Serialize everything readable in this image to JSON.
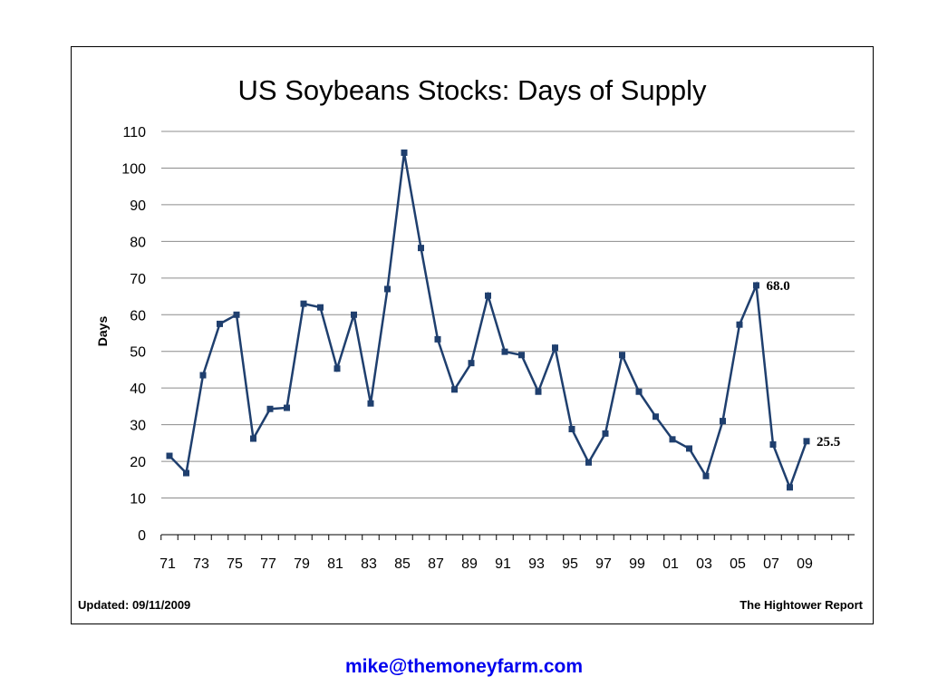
{
  "page": {
    "footer_left": "Updated: 09/11/2009",
    "footer_right": "The Hightower Report",
    "email": "mike@themoneyfarm.com",
    "link_color": "#0000ee"
  },
  "chart_data": {
    "type": "line",
    "title": "US Soybeans Stocks: Days of Supply",
    "xlabel": "",
    "ylabel": "Days",
    "ylim": [
      0,
      110
    ],
    "yticks": [
      0,
      10,
      20,
      30,
      40,
      50,
      60,
      70,
      80,
      90,
      100,
      110
    ],
    "grid": true,
    "line_color": "#1f3f6e",
    "x_tick_labels": [
      "71",
      "73",
      "75",
      "77",
      "79",
      "81",
      "83",
      "85",
      "87",
      "89",
      "91",
      "93",
      "95",
      "97",
      "99",
      "01",
      "03",
      "05",
      "07",
      "09"
    ],
    "series": [
      {
        "x": [
          1971,
          1972,
          1973,
          1974,
          1975,
          1976,
          1977,
          1978,
          1979,
          1980,
          1981,
          1982,
          1983,
          1984,
          1985,
          1986,
          1987,
          1988,
          1989,
          1990,
          1991,
          1992,
          1993,
          1994,
          1995,
          1996,
          1997,
          1998,
          1999,
          2000,
          2001,
          2002,
          2003,
          2004,
          2005,
          2006,
          2007,
          2008,
          2009
        ],
        "values": [
          21.5,
          16.8,
          43.5,
          57.5,
          60.0,
          26.2,
          34.3,
          34.6,
          63.0,
          62.0,
          45.3,
          60.0,
          35.8,
          67.0,
          104.2,
          78.2,
          53.3,
          39.6,
          46.8,
          65.2,
          49.9,
          49.0,
          39.0,
          51.0,
          28.8,
          19.7,
          27.6,
          49.0,
          39.0,
          32.2,
          26.0,
          23.5,
          16.0,
          31.0,
          57.3,
          68.0,
          24.6,
          12.9,
          25.5
        ]
      }
    ],
    "annotations": [
      {
        "x": 2006,
        "y": 68.0,
        "text": "68.0"
      },
      {
        "x": 2009,
        "y": 25.5,
        "text": "25.5"
      }
    ]
  }
}
